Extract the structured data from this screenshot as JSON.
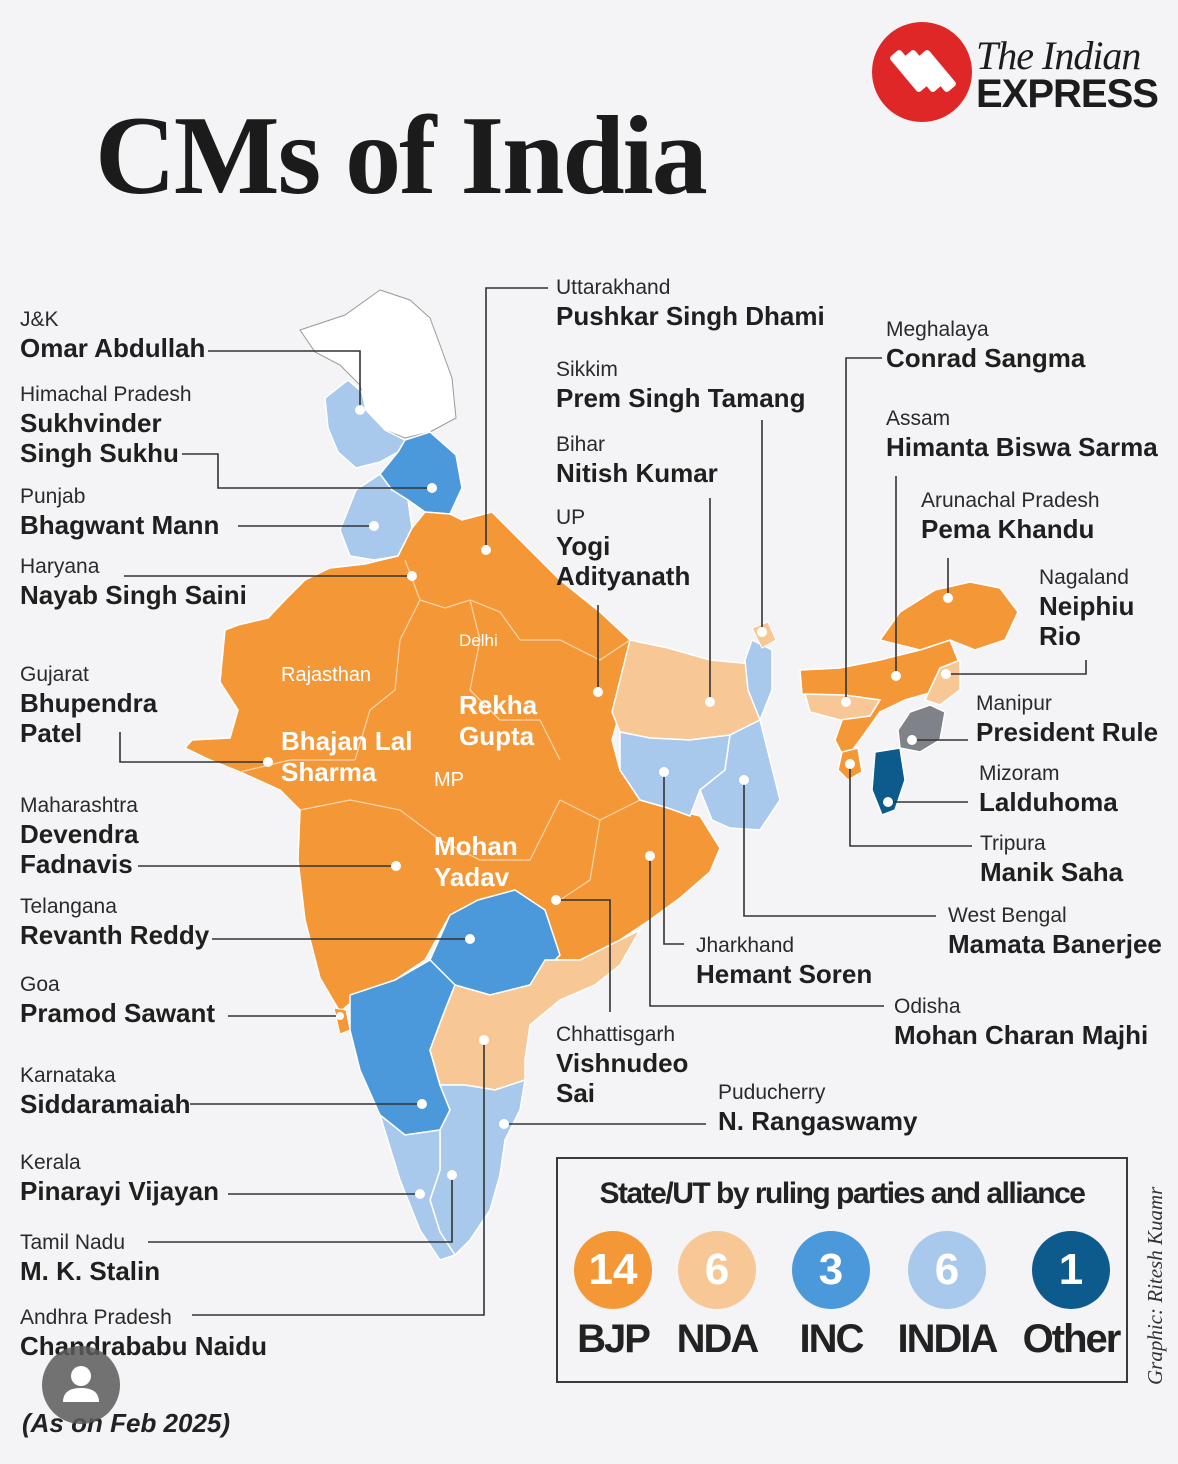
{
  "title": "CMs of India",
  "publisher": {
    "line1": "The Indian",
    "line2": "EXPRESS",
    "color": "#e02727"
  },
  "party_colors": {
    "BJP": "#f49737",
    "NDA": "#f7c796",
    "INC": "#4b98da",
    "INDIA": "#a8c8ec",
    "Other": "#0d5a8c",
    "PresidentRule": "#7f8288"
  },
  "states": [
    {
      "state": "J&K",
      "cm": "Omar Abdullah",
      "party": "INDIA"
    },
    {
      "state": "Himachal Pradesh",
      "cm": "Sukhvinder\nSingh Sukhu",
      "party": "INC"
    },
    {
      "state": "Punjab",
      "cm": "Bhagwant Mann",
      "party": "INDIA"
    },
    {
      "state": "Haryana",
      "cm": "Nayab Singh Saini",
      "party": "BJP"
    },
    {
      "state": "Gujarat",
      "cm": "Bhupendra\nPatel",
      "party": "BJP"
    },
    {
      "state": "Maharashtra",
      "cm": "Devendra\nFadnavis",
      "party": "BJP"
    },
    {
      "state": "Telangana",
      "cm": "Revanth Reddy",
      "party": "INC"
    },
    {
      "state": "Goa",
      "cm": "Pramod Sawant",
      "party": "BJP"
    },
    {
      "state": "Karnataka",
      "cm": "Siddaramaiah",
      "party": "INC"
    },
    {
      "state": "Kerala",
      "cm": "Pinarayi Vijayan",
      "party": "INDIA"
    },
    {
      "state": "Tamil Nadu",
      "cm": "M. K. Stalin",
      "party": "INDIA"
    },
    {
      "state": "Andhra Pradesh",
      "cm": "Chandrababu Naidu",
      "party": "NDA"
    },
    {
      "state": "Uttarakhand",
      "cm": "Pushkar Singh Dhami",
      "party": "BJP"
    },
    {
      "state": "Sikkim",
      "cm": "Prem Singh Tamang",
      "party": "NDA"
    },
    {
      "state": "Bihar",
      "cm": "Nitish Kumar",
      "party": "NDA"
    },
    {
      "state": "UP",
      "cm": "Yogi\nAdityanath",
      "party": "BJP"
    },
    {
      "state": "Meghalaya",
      "cm": "Conrad Sangma",
      "party": "NDA"
    },
    {
      "state": "Assam",
      "cm": "Himanta Biswa Sarma",
      "party": "BJP"
    },
    {
      "state": "Arunachal Pradesh",
      "cm": "Pema Khandu",
      "party": "BJP"
    },
    {
      "state": "Nagaland",
      "cm": "Neiphiu\nRio",
      "party": "NDA"
    },
    {
      "state": "Manipur",
      "cm": "President Rule",
      "party": "PresidentRule"
    },
    {
      "state": "Mizoram",
      "cm": "Lalduhoma",
      "party": "Other"
    },
    {
      "state": "Tripura",
      "cm": "Manik Saha",
      "party": "BJP"
    },
    {
      "state": "West Bengal",
      "cm": "Mamata Banerjee",
      "party": "INDIA"
    },
    {
      "state": "Jharkhand",
      "cm": "Hemant Soren",
      "party": "INDIA"
    },
    {
      "state": "Odisha",
      "cm": "Mohan Charan Majhi",
      "party": "BJP"
    },
    {
      "state": "Chhattisgarh",
      "cm": "Vishnudeo\nSai",
      "party": "BJP"
    },
    {
      "state": "Puducherry",
      "cm": "N. Rangaswamy",
      "party": "NDA"
    },
    {
      "state": "Rajasthan",
      "cm": "Bhajan Lal\nSharma",
      "party": "BJP"
    },
    {
      "state": "Delhi",
      "cm": "Rekha\nGupta",
      "party": "BJP"
    },
    {
      "state": "MP",
      "cm": "Mohan\nYadav",
      "party": "BJP"
    }
  ],
  "legend": {
    "title": "State/UT by ruling parties and alliance",
    "items": [
      {
        "count": "14",
        "name": "BJP",
        "color": "#f49737"
      },
      {
        "count": "6",
        "name": "NDA",
        "color": "#f7c796"
      },
      {
        "count": "3",
        "name": "INC",
        "color": "#4b98da"
      },
      {
        "count": "6",
        "name": "INDIA",
        "color": "#a8c8ec"
      },
      {
        "count": "1",
        "name": "Other",
        "color": "#0d5a8c"
      }
    ]
  },
  "credit": "Graphic: Ritesh Kuamr",
  "as_of": "(As on Feb 2025)"
}
